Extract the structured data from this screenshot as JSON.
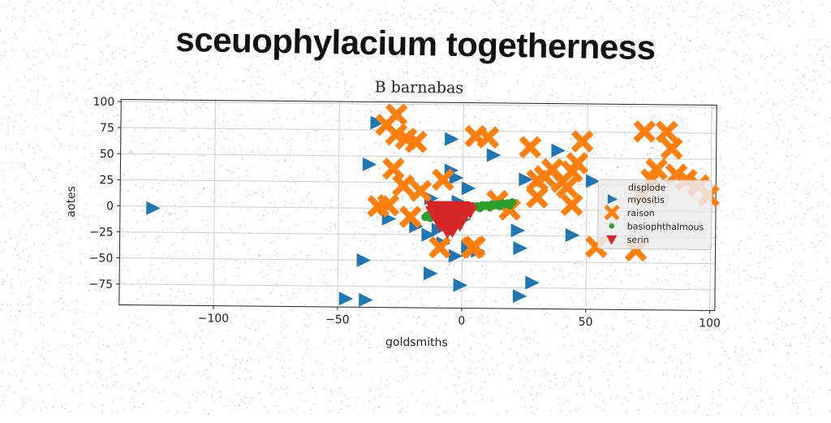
{
  "banner_title": "sceuophylacium togetherness",
  "chart_data": {
    "type": "scatter",
    "title": "B barnabas",
    "xlabel": "goldsmiths",
    "ylabel": "aotes",
    "xlim": [
      -138,
      102
    ],
    "ylim": [
      -95,
      102
    ],
    "xticks": [
      -100,
      -50,
      0,
      50,
      100
    ],
    "yticks": [
      100,
      75,
      50,
      25,
      0,
      -25,
      -50,
      -75
    ],
    "xtick_labels": [
      "−100",
      "−50",
      "0",
      "50",
      "100"
    ],
    "ytick_labels": [
      "100",
      "75",
      "50",
      "25",
      "0",
      "−25",
      "−50",
      "−75"
    ],
    "grid": true,
    "legend_position": "right",
    "legend_title": "displode",
    "series": [
      {
        "name": "myositis",
        "marker": "triangle-right",
        "color": "#1f77b4",
        "points": [
          [
            -35,
            82
          ],
          [
            -38,
            42
          ],
          [
            -125,
            -2
          ],
          [
            -30,
            -10
          ],
          [
            -19,
            -17
          ],
          [
            -14,
            -25
          ],
          [
            -10,
            -20
          ],
          [
            -13,
            10
          ],
          [
            -5,
            67
          ],
          [
            -5,
            37
          ],
          [
            -3,
            30
          ],
          [
            -2,
            7
          ],
          [
            0,
            -10
          ],
          [
            -3,
            -45
          ],
          [
            -1,
            -73
          ],
          [
            2,
            20
          ],
          [
            12,
            52
          ],
          [
            -13,
            -62
          ],
          [
            -40,
            -50
          ],
          [
            -47,
            -87
          ],
          [
            -39,
            -88
          ],
          [
            22,
            -20
          ],
          [
            23,
            -37
          ],
          [
            23,
            -83
          ],
          [
            25,
            29
          ],
          [
            28,
            -70
          ],
          [
            38,
            57
          ],
          [
            44,
            -24
          ],
          [
            52,
            28
          ],
          [
            2,
            -36
          ],
          [
            -8,
            -33
          ],
          [
            6,
            -40
          ]
        ]
      },
      {
        "name": "raison",
        "marker": "x-filled",
        "color": "#ff7f0e",
        "points": [
          [
            -31,
            80
          ],
          [
            -27,
            90
          ],
          [
            -27,
            71
          ],
          [
            -23,
            67
          ],
          [
            -19,
            64
          ],
          [
            -28,
            38
          ],
          [
            -24,
            22
          ],
          [
            -21,
            -8
          ],
          [
            -30,
            3
          ],
          [
            -34,
            2
          ],
          [
            -17,
            17
          ],
          [
            -8,
            28
          ],
          [
            -9,
            -37
          ],
          [
            5,
            70
          ],
          [
            10,
            69
          ],
          [
            14,
            8
          ],
          [
            19,
            0
          ],
          [
            4,
            -37
          ],
          [
            5,
            -36
          ],
          [
            27,
            60
          ],
          [
            30,
            12
          ],
          [
            30,
            28
          ],
          [
            33,
            32
          ],
          [
            36,
            39
          ],
          [
            40,
            27
          ],
          [
            42,
            22
          ],
          [
            44,
            37
          ],
          [
            46,
            45
          ],
          [
            48,
            66
          ],
          [
            44,
            5
          ],
          [
            54,
            -35
          ],
          [
            73,
            76
          ],
          [
            78,
            40
          ],
          [
            82,
            76
          ],
          [
            84,
            60
          ],
          [
            86,
            35
          ],
          [
            90,
            30
          ],
          [
            95,
            25
          ],
          [
            99,
            15
          ],
          [
            76,
            30
          ],
          [
            70,
            -38
          ],
          [
            72,
            15
          ]
        ]
      },
      {
        "name": "basiophthalmous",
        "marker": "circle",
        "color": "#2ca02c",
        "points": [
          [
            -15,
            -8
          ],
          [
            -12,
            -5
          ],
          [
            -10,
            -3
          ],
          [
            -8,
            -4
          ],
          [
            -6,
            -2
          ],
          [
            -4,
            -1
          ],
          [
            -2,
            0
          ],
          [
            0,
            1
          ],
          [
            2,
            2
          ],
          [
            4,
            3
          ],
          [
            6,
            3
          ],
          [
            8,
            4
          ],
          [
            10,
            4
          ],
          [
            12,
            5
          ],
          [
            14,
            5
          ],
          [
            16,
            6
          ],
          [
            18,
            6
          ],
          [
            20,
            7
          ],
          [
            -14,
            -6
          ],
          [
            -11,
            -4
          ],
          [
            -7,
            -3
          ],
          [
            -3,
            -1
          ],
          [
            1,
            1
          ],
          [
            5,
            2
          ],
          [
            9,
            3
          ],
          [
            13,
            4
          ],
          [
            17,
            5
          ],
          [
            -13,
            -9
          ],
          [
            -9,
            -8
          ],
          [
            -5,
            -5
          ],
          [
            -1,
            -2
          ],
          [
            3,
            0
          ],
          [
            7,
            1
          ],
          [
            11,
            2
          ],
          [
            15,
            3
          ],
          [
            19,
            4
          ]
        ]
      },
      {
        "name": "serin",
        "marker": "triangle-down",
        "color": "#d62728",
        "points": [
          [
            -12,
            2
          ],
          [
            -10,
            1
          ],
          [
            -8,
            2
          ],
          [
            -6,
            1
          ],
          [
            -4,
            2
          ],
          [
            -2,
            1
          ],
          [
            0,
            2
          ],
          [
            2,
            1
          ],
          [
            -11,
            -4
          ],
          [
            -9,
            -5
          ],
          [
            -7,
            -4
          ],
          [
            -5,
            -6
          ],
          [
            -3,
            -5
          ],
          [
            -1,
            -4
          ],
          [
            1,
            -3
          ],
          [
            -10,
            -10
          ],
          [
            -8,
            -11
          ],
          [
            -6,
            -12
          ],
          [
            -4,
            -10
          ],
          [
            -2,
            -11
          ],
          [
            0,
            -9
          ],
          [
            -7,
            -17
          ],
          [
            -5,
            -18
          ],
          [
            -3,
            -16
          ],
          [
            -9,
            -15
          ],
          [
            -1,
            -14
          ],
          [
            3,
            -2
          ],
          [
            -12,
            -3
          ],
          [
            -6,
            -21
          ],
          [
            -4,
            -20
          ]
        ]
      }
    ]
  }
}
